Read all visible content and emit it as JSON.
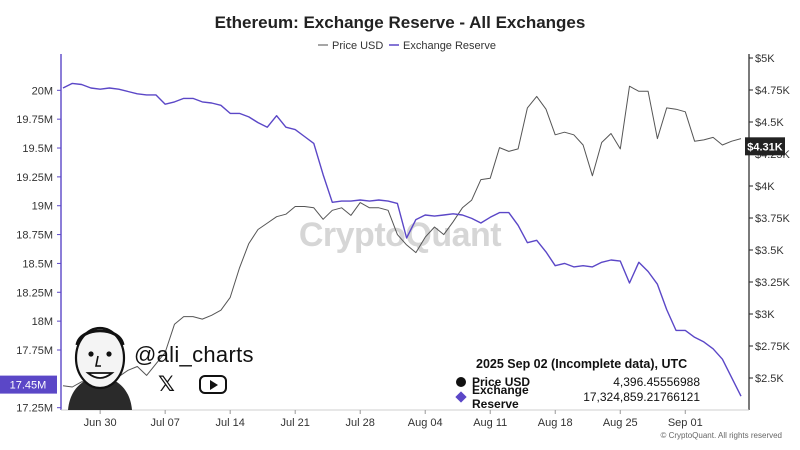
{
  "chart_data": {
    "type": "line",
    "title": "Ethereum: Exchange Reserve - All Exchanges",
    "legend": [
      "Price USD",
      "Exchange Reserve"
    ],
    "legend_position": "top-center",
    "x_ticks": [
      "Jun 30",
      "Jul 07",
      "Jul 14",
      "Jul 21",
      "Jul 28",
      "Aug 04",
      "Aug 11",
      "Aug 18",
      "Aug 25",
      "Sep 01"
    ],
    "x_tick_day_index": [
      4,
      11,
      18,
      25,
      32,
      39,
      46,
      53,
      60,
      67
    ],
    "left_axis": {
      "label": "Exchange Reserve",
      "ticks": [
        "20M",
        "19.75M",
        "19.5M",
        "19.25M",
        "19M",
        "18.75M",
        "18.5M",
        "18.25M",
        "18M",
        "17.75M",
        "17.25M"
      ],
      "range": [
        17.23,
        20.28
      ]
    },
    "right_axis": {
      "label": "Price USD",
      "ticks": [
        "$5K",
        "$4.75K",
        "$4.5K",
        "$4.25K",
        "$4K",
        "$3.75K",
        "$3.5K",
        "$3.25K",
        "$3K",
        "$2.75K",
        "$2.5K"
      ],
      "range": [
        2.25,
        5.0
      ]
    },
    "reserve_badge": "17.45M",
    "price_badge": "$4.31K",
    "series": [
      {
        "name": "Exchange Reserve",
        "color": "#5b47c7",
        "axis": "left",
        "values": [
          20.02,
          20.06,
          20.05,
          20.02,
          20.01,
          20.02,
          20.01,
          19.99,
          19.97,
          19.96,
          19.96,
          19.88,
          19.9,
          19.93,
          19.93,
          19.9,
          19.89,
          19.87,
          19.8,
          19.8,
          19.77,
          19.72,
          19.68,
          19.78,
          19.68,
          19.66,
          19.6,
          19.54,
          19.27,
          19.03,
          19.04,
          19.04,
          19.05,
          19.04,
          19.05,
          19.04,
          19.02,
          18.72,
          18.88,
          18.92,
          18.91,
          18.92,
          18.93,
          18.92,
          18.89,
          18.85,
          18.9,
          18.94,
          18.94,
          18.83,
          18.68,
          18.7,
          18.6,
          18.48,
          18.5,
          18.47,
          18.48,
          18.47,
          18.51,
          18.53,
          18.52,
          18.33,
          18.51,
          18.43,
          18.32,
          18.1,
          17.92,
          17.92,
          17.86,
          17.82,
          17.76,
          17.67,
          17.51,
          17.35
        ]
      },
      {
        "name": "Price USD",
        "color": "#555555",
        "axis": "right",
        "values": [
          2.44,
          2.43,
          2.47,
          2.47,
          2.48,
          2.5,
          2.51,
          2.56,
          2.59,
          2.52,
          2.61,
          2.7,
          2.92,
          2.98,
          2.98,
          2.96,
          2.99,
          3.03,
          3.13,
          3.36,
          3.55,
          3.66,
          3.71,
          3.76,
          3.78,
          3.84,
          3.84,
          3.83,
          3.74,
          3.81,
          3.83,
          3.77,
          3.87,
          3.83,
          3.83,
          3.81,
          3.62,
          3.54,
          3.48,
          3.6,
          3.68,
          3.62,
          3.72,
          3.83,
          3.89,
          4.05,
          4.06,
          4.3,
          4.27,
          4.29,
          4.61,
          4.7,
          4.6,
          4.4,
          4.42,
          4.4,
          4.32,
          4.08,
          4.34,
          4.41,
          4.29,
          4.78,
          4.74,
          4.74,
          4.37,
          4.61,
          4.6,
          4.58,
          4.35,
          4.36,
          4.38,
          4.32,
          4.35,
          4.37
        ]
      }
    ]
  },
  "info_box": {
    "heading": "2025 Sep 02 (Incomplete data), UTC",
    "price_label": "Price USD",
    "price_value": "4,396.45556988",
    "reserve_label": "Exchange Reserve",
    "reserve_value": "17,324,859.21766121"
  },
  "watermark": "CryptoQuant",
  "branding": {
    "handle": "@ali_charts",
    "x_glyph": "𝕏"
  },
  "copyright": "© CryptoQuant. All rights reserved"
}
